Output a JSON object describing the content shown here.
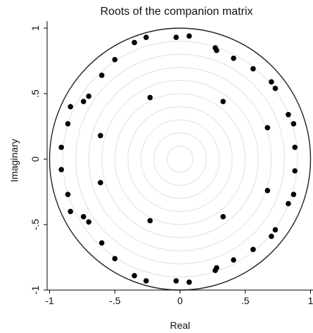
{
  "chart_data": {
    "type": "scatter",
    "title": "Roots of the companion matrix",
    "xlabel": "Real",
    "ylabel": "Imaginary",
    "xlim": [
      -1.02,
      1.02
    ],
    "ylim": [
      -1.02,
      1.02
    ],
    "xticks": [
      -1,
      -0.5,
      0,
      0.5,
      1
    ],
    "xtick_labels": [
      "-1",
      "-.5",
      "0",
      ".5",
      "1"
    ],
    "yticks": [
      -1,
      -0.5,
      0,
      0.5,
      1
    ],
    "ytick_labels": [
      "-1",
      "-.5",
      "0",
      ".5",
      "1"
    ],
    "unit_circle": true,
    "reference_rings": [
      0.1,
      0.2,
      0.3,
      0.4,
      0.5,
      0.6,
      0.7,
      0.8,
      0.9
    ],
    "colors": {
      "points": "#000000",
      "circle": "#222222",
      "rings": "#e0e0e0"
    },
    "series": [
      {
        "values": [
          [
            0.07,
            0.94
          ],
          [
            -0.03,
            0.93
          ],
          [
            -0.26,
            0.93
          ],
          [
            -0.35,
            0.89
          ],
          [
            0.27,
            0.85
          ],
          [
            0.28,
            0.83
          ],
          [
            0.41,
            0.77
          ],
          [
            -0.5,
            0.76
          ],
          [
            0.56,
            0.69
          ],
          [
            -0.6,
            0.64
          ],
          [
            0.7,
            0.59
          ],
          [
            0.73,
            0.54
          ],
          [
            -0.7,
            0.48
          ],
          [
            -0.74,
            0.44
          ],
          [
            0.33,
            0.44
          ],
          [
            -0.84,
            0.4
          ],
          [
            -0.23,
            0.47
          ],
          [
            0.83,
            0.34
          ],
          [
            -0.86,
            0.27
          ],
          [
            0.87,
            0.27
          ],
          [
            0.67,
            0.24
          ],
          [
            -0.61,
            0.18
          ],
          [
            -0.91,
            0.09
          ],
          [
            0.88,
            0.09
          ],
          [
            -0.91,
            -0.08
          ],
          [
            0.88,
            -0.09
          ],
          [
            -0.61,
            -0.18
          ],
          [
            0.67,
            -0.24
          ],
          [
            -0.86,
            -0.27
          ],
          [
            0.87,
            -0.27
          ],
          [
            0.83,
            -0.34
          ],
          [
            -0.84,
            -0.4
          ],
          [
            -0.74,
            -0.44
          ],
          [
            -0.7,
            -0.48
          ],
          [
            0.33,
            -0.44
          ],
          [
            -0.23,
            -0.47
          ],
          [
            0.73,
            -0.54
          ],
          [
            0.7,
            -0.59
          ],
          [
            -0.6,
            -0.64
          ],
          [
            0.56,
            -0.69
          ],
          [
            -0.5,
            -0.76
          ],
          [
            0.41,
            -0.77
          ],
          [
            0.28,
            -0.83
          ],
          [
            0.27,
            -0.85
          ],
          [
            -0.35,
            -0.89
          ],
          [
            -0.26,
            -0.93
          ],
          [
            -0.03,
            -0.93
          ],
          [
            0.07,
            -0.94
          ]
        ]
      }
    ]
  }
}
